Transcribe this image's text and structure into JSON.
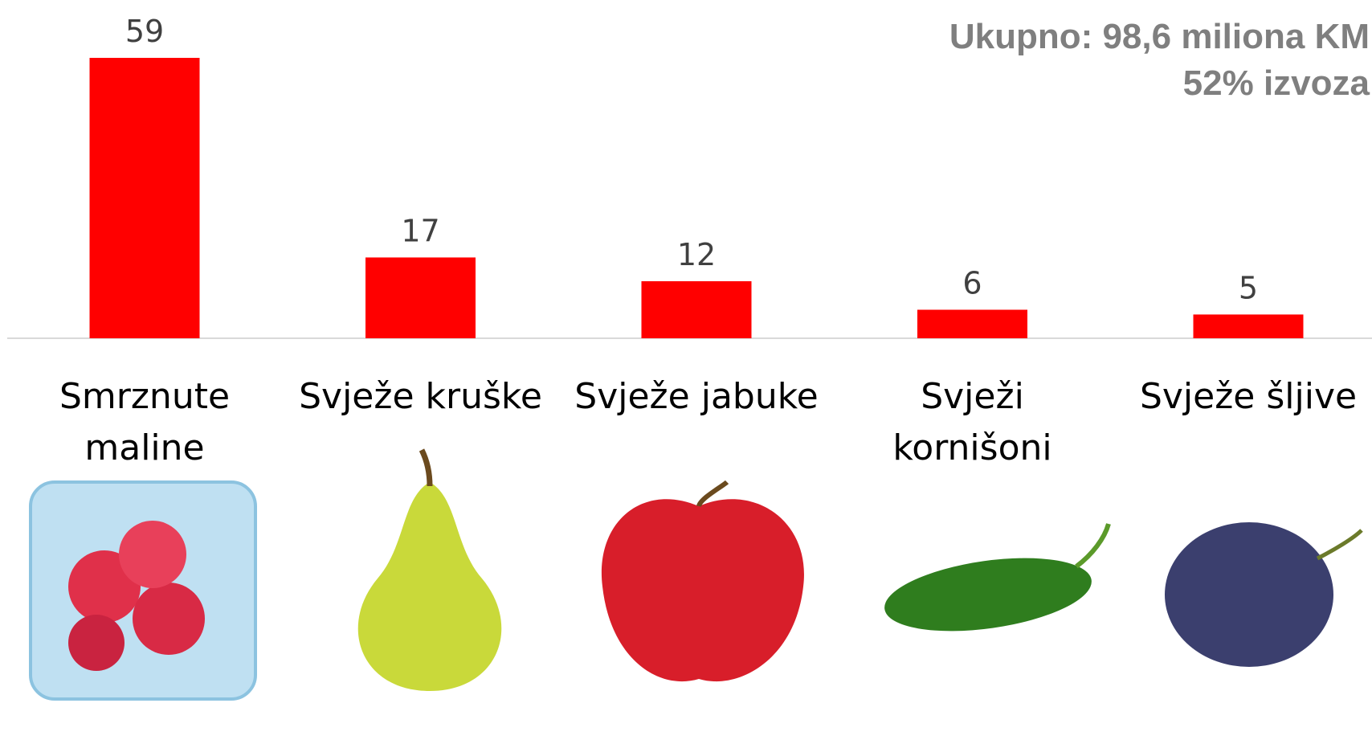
{
  "chart_data": {
    "type": "bar",
    "annotations": [
      "Ukupno: 98,6 miliona KM",
      "52% izvoza"
    ],
    "categories": [
      "Smrznute maline",
      "Svježe kruške",
      "Svježe jabuke",
      "Svježi kornišoni",
      "Svježe šljive"
    ],
    "values": [
      59,
      17,
      12,
      6,
      5
    ],
    "color": "#ff0000"
  }
}
